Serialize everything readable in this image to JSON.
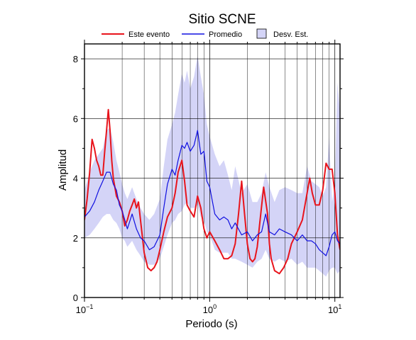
{
  "chart_data": {
    "type": "line",
    "title": "Sitio SCNE",
    "xlabel": "Periodo (s)",
    "ylabel": "Amplitud",
    "x_scale": "log",
    "xlim": [
      0.1,
      11
    ],
    "ylim": [
      0,
      8.5
    ],
    "grid": true,
    "legend_position": "top",
    "y_ticks": [
      "0",
      "2",
      "4",
      "6",
      "8"
    ],
    "x_ticks": [
      {
        "base": "10",
        "exp": "−1",
        "value": 0.1
      },
      {
        "base": "10",
        "exp": "0",
        "value": 1
      },
      {
        "base": "10",
        "exp": "1",
        "value": 10
      }
    ],
    "series": [
      {
        "name": "Este evento",
        "color": "#e8141c",
        "x": [
          0.1,
          0.105,
          0.11,
          0.115,
          0.12,
          0.125,
          0.13,
          0.135,
          0.14,
          0.145,
          0.15,
          0.155,
          0.16,
          0.165,
          0.17,
          0.18,
          0.19,
          0.2,
          0.21,
          0.22,
          0.23,
          0.24,
          0.25,
          0.26,
          0.27,
          0.28,
          0.3,
          0.32,
          0.34,
          0.36,
          0.38,
          0.4,
          0.43,
          0.46,
          0.5,
          0.53,
          0.56,
          0.6,
          0.63,
          0.66,
          0.7,
          0.75,
          0.8,
          0.85,
          0.9,
          0.95,
          1.0,
          1.1,
          1.2,
          1.3,
          1.4,
          1.5,
          1.6,
          1.7,
          1.8,
          1.9,
          2.0,
          2.1,
          2.2,
          2.3,
          2.4,
          2.5,
          2.7,
          2.9,
          3.0,
          3.1,
          3.3,
          3.6,
          3.9,
          4.2,
          4.5,
          5.0,
          5.5,
          6.0,
          6.3,
          6.6,
          7.0,
          7.5,
          8.0,
          8.5,
          9.0,
          9.5,
          10.0,
          10.5,
          11.0
        ],
        "y": [
          2.6,
          3.3,
          4.2,
          5.3,
          5.0,
          4.6,
          4.4,
          4.1,
          4.1,
          4.9,
          5.6,
          6.3,
          5.6,
          4.6,
          4.0,
          3.4,
          3.2,
          2.9,
          2.4,
          2.6,
          2.9,
          3.1,
          3.3,
          3.0,
          3.2,
          2.6,
          1.5,
          1.0,
          0.9,
          1.0,
          1.2,
          1.6,
          2.2,
          2.7,
          3.0,
          3.5,
          4.2,
          4.6,
          3.9,
          3.1,
          2.9,
          2.7,
          3.4,
          3.0,
          2.3,
          2.0,
          2.2,
          1.9,
          1.6,
          1.3,
          1.3,
          1.4,
          1.8,
          2.8,
          3.9,
          2.8,
          1.8,
          1.3,
          1.2,
          1.3,
          1.7,
          2.4,
          3.7,
          2.8,
          1.8,
          1.3,
          0.9,
          0.8,
          1.0,
          1.3,
          1.8,
          2.2,
          2.6,
          3.5,
          4.0,
          3.5,
          3.1,
          3.1,
          3.6,
          4.5,
          4.3,
          4.3,
          3.5,
          2.1,
          1.6
        ]
      },
      {
        "name": "Promedio",
        "color": "#1010e0",
        "x": [
          0.1,
          0.11,
          0.12,
          0.13,
          0.14,
          0.15,
          0.16,
          0.17,
          0.18,
          0.19,
          0.2,
          0.21,
          0.22,
          0.24,
          0.26,
          0.28,
          0.3,
          0.33,
          0.36,
          0.4,
          0.43,
          0.46,
          0.5,
          0.53,
          0.56,
          0.6,
          0.63,
          0.66,
          0.7,
          0.75,
          0.8,
          0.85,
          0.9,
          0.95,
          1.0,
          1.1,
          1.2,
          1.3,
          1.4,
          1.5,
          1.6,
          1.8,
          2.0,
          2.2,
          2.4,
          2.6,
          2.8,
          3.0,
          3.3,
          3.6,
          4.0,
          4.5,
          5.0,
          5.5,
          6.0,
          6.5,
          7.0,
          7.5,
          8.0,
          8.5,
          9.0,
          9.5,
          10.0,
          10.5,
          11.0
        ],
        "y": [
          2.7,
          2.9,
          3.2,
          3.6,
          3.9,
          4.2,
          4.2,
          3.8,
          3.6,
          3.1,
          2.9,
          2.6,
          2.3,
          2.8,
          2.3,
          2.0,
          1.9,
          1.6,
          1.7,
          2.1,
          3.0,
          3.8,
          4.3,
          4.1,
          4.6,
          5.1,
          5.0,
          5.2,
          4.9,
          5.1,
          5.6,
          4.8,
          4.9,
          3.9,
          3.7,
          2.8,
          2.6,
          2.7,
          2.6,
          2.3,
          2.5,
          2.1,
          2.2,
          1.9,
          2.1,
          2.2,
          2.8,
          2.2,
          2.1,
          2.3,
          2.2,
          2.1,
          1.9,
          2.1,
          1.9,
          1.9,
          1.8,
          1.6,
          1.5,
          1.4,
          1.7,
          2.1,
          2.2,
          1.9,
          1.8
        ]
      },
      {
        "name": "Desv. Est.",
        "type": "band",
        "color": "#d4d4f7",
        "x": [
          0.1,
          0.11,
          0.12,
          0.13,
          0.14,
          0.15,
          0.16,
          0.17,
          0.18,
          0.19,
          0.2,
          0.21,
          0.22,
          0.24,
          0.26,
          0.28,
          0.3,
          0.33,
          0.36,
          0.4,
          0.43,
          0.46,
          0.5,
          0.53,
          0.56,
          0.6,
          0.63,
          0.66,
          0.7,
          0.75,
          0.8,
          0.85,
          0.9,
          0.95,
          1.0,
          1.1,
          1.2,
          1.3,
          1.4,
          1.5,
          1.6,
          1.8,
          2.0,
          2.2,
          2.4,
          2.6,
          2.8,
          3.0,
          3.3,
          3.6,
          4.0,
          4.5,
          5.0,
          5.5,
          6.0,
          6.5,
          7.0,
          7.5,
          8.0,
          8.5,
          9.0,
          9.5,
          10.0,
          10.5,
          11.0
        ],
        "upper": [
          3.6,
          4.2,
          4.6,
          4.8,
          5.0,
          5.6,
          5.7,
          5.2,
          4.6,
          4.2,
          3.8,
          3.5,
          3.3,
          3.7,
          3.3,
          3.0,
          2.8,
          2.6,
          2.8,
          3.3,
          4.4,
          5.3,
          5.8,
          6.2,
          6.8,
          7.5,
          7.2,
          7.6,
          7.0,
          7.4,
          8.1,
          7.4,
          6.8,
          5.8,
          5.4,
          4.8,
          4.4,
          4.6,
          4.1,
          3.6,
          4.4,
          3.5,
          3.8,
          3.2,
          3.2,
          3.5,
          4.2,
          3.7,
          3.2,
          3.6,
          3.7,
          3.6,
          3.5,
          3.5,
          4.4,
          3.9,
          3.8,
          3.7,
          3.4,
          3.7,
          5.4,
          3.2,
          3.8,
          7.2,
          6.2
        ],
        "lower": [
          2.0,
          2.1,
          2.3,
          2.5,
          2.7,
          2.8,
          2.8,
          2.6,
          2.5,
          2.3,
          2.0,
          1.9,
          1.7,
          1.9,
          1.6,
          1.4,
          1.2,
          1.1,
          1.1,
          1.3,
          1.7,
          2.1,
          2.5,
          2.6,
          2.8,
          2.9,
          3.1,
          3.2,
          3.0,
          3.0,
          3.1,
          2.7,
          2.6,
          2.2,
          2.1,
          1.6,
          1.5,
          1.5,
          1.5,
          1.3,
          1.3,
          1.2,
          1.1,
          1.0,
          1.2,
          1.3,
          1.6,
          1.3,
          1.2,
          1.3,
          1.2,
          1.3,
          1.1,
          1.2,
          1.0,
          1.0,
          1.0,
          0.9,
          0.8,
          0.7,
          0.9,
          1.0,
          1.0,
          0.8,
          0.9
        ]
      }
    ]
  }
}
